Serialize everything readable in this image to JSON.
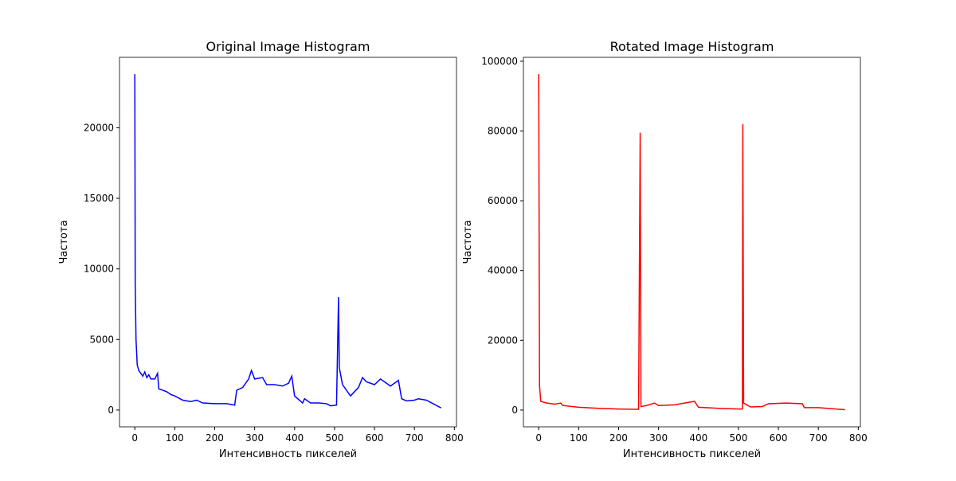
{
  "chart_data": [
    {
      "type": "line",
      "title": "Original Image Histogram",
      "xlabel": "Интенсивность пикселей",
      "ylabel": "Частота",
      "x": [
        0,
        1,
        3,
        6,
        10,
        20,
        25,
        30,
        35,
        40,
        50,
        57,
        60,
        70,
        80,
        90,
        100,
        120,
        140,
        155,
        170,
        200,
        230,
        250,
        255,
        270,
        285,
        292,
        300,
        320,
        330,
        350,
        370,
        385,
        393,
        400,
        420,
        425,
        440,
        460,
        480,
        490,
        505,
        510,
        512,
        520,
        540,
        560,
        570,
        580,
        600,
        615,
        640,
        660,
        668,
        680,
        700,
        710,
        730,
        750,
        767
      ],
      "series": [
        {
          "name": "Original",
          "color": "#0000ff",
          "values": [
            23800,
            9000,
            5000,
            3200,
            2800,
            2400,
            2700,
            2300,
            2500,
            2200,
            2200,
            2600,
            1500,
            1400,
            1300,
            1100,
            1000,
            700,
            600,
            700,
            500,
            450,
            450,
            350,
            1400,
            1600,
            2200,
            2800,
            2200,
            2300,
            1800,
            1800,
            1700,
            1900,
            2400,
            1000,
            500,
            800,
            500,
            500,
            450,
            300,
            350,
            8000,
            3000,
            1800,
            1000,
            1600,
            2300,
            2000,
            1800,
            2200,
            1700,
            2100,
            800,
            650,
            700,
            800,
            700,
            400,
            150
          ]
        }
      ],
      "xlim": [
        -38.35,
        805.35
      ],
      "xticks": [
        0,
        100,
        200,
        300,
        400,
        500,
        600,
        700,
        800
      ],
      "ylim": [
        -1190,
        24990
      ],
      "yticks": [
        0,
        5000,
        10000,
        15000,
        20000
      ]
    },
    {
      "type": "line",
      "title": "Rotated Image Histogram",
      "xlabel": "Интенсивность пикселей",
      "ylabel": "Частота",
      "x": [
        0,
        2,
        5,
        20,
        40,
        55,
        60,
        100,
        150,
        200,
        250,
        254,
        256,
        270,
        290,
        300,
        340,
        390,
        400,
        450,
        500,
        510,
        511,
        513,
        530,
        560,
        575,
        620,
        660,
        665,
        700,
        767
      ],
      "series": [
        {
          "name": "Rotated",
          "color": "#ff0000",
          "values": [
            96300,
            7000,
            2500,
            2000,
            1700,
            2000,
            1300,
            800,
            500,
            300,
            200,
            79500,
            1000,
            1300,
            2000,
            1300,
            1500,
            2500,
            800,
            500,
            300,
            300,
            82000,
            2000,
            900,
            1000,
            1800,
            2000,
            1800,
            700,
            700,
            100
          ]
        }
      ],
      "xlim": [
        -38.35,
        805.35
      ],
      "xticks": [
        0,
        100,
        200,
        300,
        400,
        500,
        600,
        700,
        800
      ],
      "ylim": [
        -4815,
        101115
      ],
      "yticks": [
        0,
        20000,
        40000,
        60000,
        80000,
        100000
      ]
    }
  ]
}
